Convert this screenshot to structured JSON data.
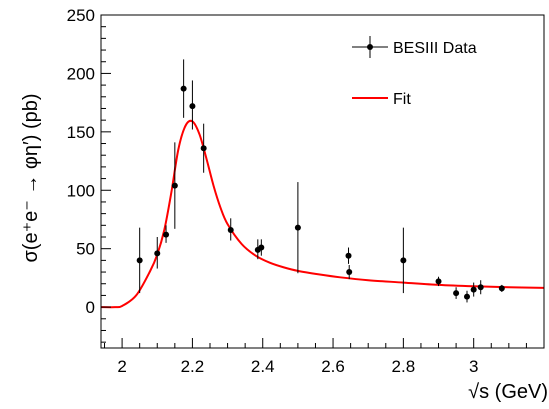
{
  "chart_data": {
    "type": "scatter",
    "title": "",
    "xlabel": "√s (GeV)",
    "ylabel": "σ(e⁺e⁻ → φη′) (pb)",
    "xlim": [
      1.94,
      3.2
    ],
    "ylim": [
      -35,
      250
    ],
    "xticks": [
      2,
      2.2,
      2.4,
      2.6,
      2.8,
      3
    ],
    "xtick_labels": [
      "2",
      "2.2",
      "2.4",
      "2.6",
      "2.8",
      "3"
    ],
    "yticks": [
      0,
      50,
      100,
      150,
      200,
      250
    ],
    "ytick_labels": [
      "0",
      "50",
      "100",
      "150",
      "200",
      "250"
    ],
    "grid": false,
    "legend_position": "top-right",
    "series": [
      {
        "name": "BESIII Data",
        "kind": "points-with-errors",
        "color": "#000000",
        "points": [
          {
            "x": 2.05,
            "y": 40,
            "lo": 12,
            "hi": 68
          },
          {
            "x": 2.1,
            "y": 46,
            "lo": 33,
            "hi": 60
          },
          {
            "x": 2.125,
            "y": 62,
            "lo": 55,
            "hi": 70
          },
          {
            "x": 2.15,
            "y": 104,
            "lo": 67,
            "hi": 141
          },
          {
            "x": 2.175,
            "y": 187,
            "lo": 162,
            "hi": 212
          },
          {
            "x": 2.2,
            "y": 172,
            "lo": 152,
            "hi": 194
          },
          {
            "x": 2.232,
            "y": 136,
            "lo": 115,
            "hi": 157
          },
          {
            "x": 2.309,
            "y": 66,
            "lo": 57,
            "hi": 76
          },
          {
            "x": 2.386,
            "y": 49,
            "lo": 41,
            "hi": 58
          },
          {
            "x": 2.396,
            "y": 51,
            "lo": 44,
            "hi": 58
          },
          {
            "x": 2.5,
            "y": 68,
            "lo": 29,
            "hi": 107
          },
          {
            "x": 2.644,
            "y": 44,
            "lo": 37,
            "hi": 51
          },
          {
            "x": 2.646,
            "y": 30,
            "lo": 24,
            "hi": 36
          },
          {
            "x": 2.8,
            "y": 40,
            "lo": 12,
            "hi": 68
          },
          {
            "x": 2.9,
            "y": 22,
            "lo": 18,
            "hi": 26
          },
          {
            "x": 2.95,
            "y": 12,
            "lo": 7,
            "hi": 17
          },
          {
            "x": 2.981,
            "y": 9,
            "lo": 4,
            "hi": 14
          },
          {
            "x": 3.0,
            "y": 15,
            "lo": 9,
            "hi": 21
          },
          {
            "x": 3.02,
            "y": 17,
            "lo": 11,
            "hi": 23
          },
          {
            "x": 3.08,
            "y": 16,
            "lo": 13,
            "hi": 19
          }
        ]
      },
      {
        "name": "Fit",
        "kind": "line",
        "color": "#ff0000",
        "x": [
          1.94,
          1.98,
          2.0,
          2.04,
          2.08,
          2.1,
          2.12,
          2.14,
          2.16,
          2.18,
          2.2,
          2.22,
          2.24,
          2.26,
          2.28,
          2.3,
          2.34,
          2.38,
          2.42,
          2.46,
          2.5,
          2.56,
          2.62,
          2.7,
          2.8,
          2.9,
          3.0,
          3.1,
          3.2
        ],
        "y": [
          0,
          0,
          1,
          10,
          31,
          45,
          66,
          98,
          135,
          155,
          159,
          148,
          127,
          104,
          85,
          71,
          54,
          44,
          38,
          34,
          31,
          28,
          25.5,
          23,
          21,
          19,
          17.8,
          17,
          16.5
        ]
      }
    ]
  }
}
